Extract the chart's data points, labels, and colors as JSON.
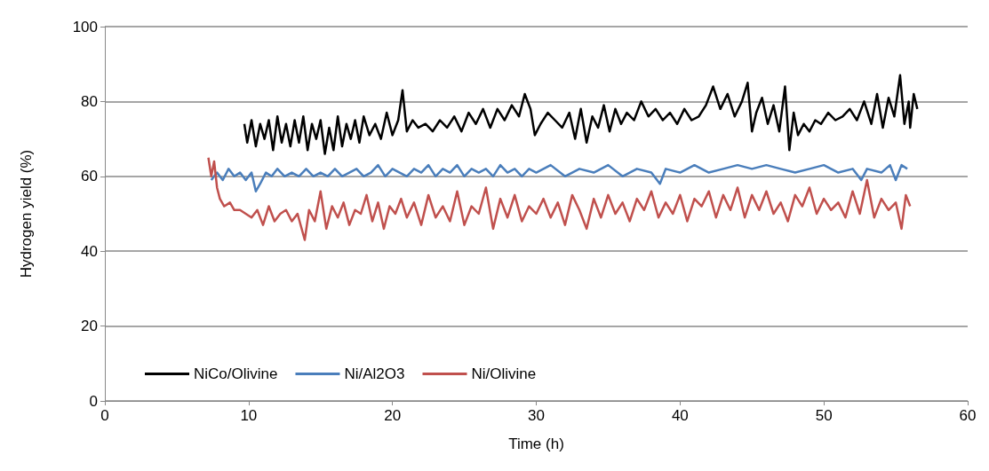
{
  "chart_data": {
    "type": "line",
    "xlabel": "Time (h)",
    "ylabel": "Hydrogen yield (%)",
    "xlim": [
      0,
      60
    ],
    "xticks": [
      0,
      10,
      20,
      30,
      40,
      50,
      60
    ],
    "ylim": [
      0,
      100
    ],
    "yticks": [
      0,
      20,
      40,
      60,
      80,
      100
    ],
    "grid": "y",
    "legend": "bottom left",
    "marker": "none",
    "line_style": "solid",
    "series": [
      {
        "name": "NiCo/Olivine",
        "color": "#000000",
        "x": [
          9.7,
          9.9,
          10.2,
          10.5,
          10.8,
          11.1,
          11.4,
          11.7,
          12.0,
          12.3,
          12.6,
          12.9,
          13.2,
          13.5,
          13.8,
          14.1,
          14.4,
          14.7,
          15.0,
          15.3,
          15.6,
          15.9,
          16.2,
          16.5,
          16.8,
          17.1,
          17.4,
          17.7,
          18.0,
          18.4,
          18.8,
          19.2,
          19.6,
          20.0,
          20.4,
          20.7,
          21.0,
          21.4,
          21.8,
          22.3,
          22.8,
          23.3,
          23.8,
          24.3,
          24.8,
          25.3,
          25.8,
          26.3,
          26.8,
          27.3,
          27.8,
          28.3,
          28.8,
          29.2,
          29.6,
          29.9,
          30.3,
          30.8,
          31.3,
          31.8,
          32.3,
          32.7,
          33.1,
          33.5,
          33.9,
          34.3,
          34.7,
          35.1,
          35.5,
          35.9,
          36.3,
          36.8,
          37.3,
          37.8,
          38.3,
          38.8,
          39.3,
          39.8,
          40.3,
          40.8,
          41.3,
          41.8,
          42.3,
          42.8,
          43.3,
          43.8,
          44.3,
          44.7,
          45.0,
          45.3,
          45.7,
          46.1,
          46.5,
          46.9,
          47.3,
          47.6,
          47.9,
          48.2,
          48.6,
          49.0,
          49.4,
          49.8,
          50.3,
          50.8,
          51.3,
          51.8,
          52.3,
          52.8,
          53.3,
          53.7,
          54.1,
          54.5,
          54.9,
          55.3,
          55.6,
          55.9,
          56.0,
          56.25,
          56.5
        ],
        "values": [
          74,
          69,
          75,
          68,
          74,
          70,
          75,
          67,
          76,
          69,
          74,
          68,
          75,
          69,
          76,
          67,
          74,
          70,
          75,
          66,
          73,
          67,
          76,
          68,
          74,
          70,
          75,
          69,
          76,
          71,
          74,
          70,
          77,
          71,
          75,
          83,
          72,
          75,
          73,
          74,
          72,
          75,
          73,
          76,
          72,
          77,
          74,
          78,
          73,
          78,
          75,
          79,
          76,
          82,
          78,
          71,
          74,
          77,
          75,
          73,
          77,
          70,
          78,
          69,
          76,
          73,
          79,
          72,
          78,
          74,
          77,
          75,
          80,
          76,
          78,
          75,
          77,
          74,
          78,
          75,
          76,
          79,
          84,
          78,
          82,
          76,
          80,
          85,
          72,
          77,
          81,
          74,
          79,
          72,
          84,
          67,
          77,
          71,
          74,
          72,
          75,
          74,
          77,
          75,
          76,
          78,
          75,
          80,
          74,
          82,
          73,
          81,
          76,
          87,
          74,
          80,
          73,
          82,
          78
        ]
      },
      {
        "name": "Ni/Al2O3",
        "color": "#4a7ebb",
        "x": [
          7.4,
          7.8,
          8.2,
          8.6,
          9.0,
          9.4,
          9.8,
          10.2,
          10.5,
          10.8,
          11.2,
          11.6,
          12.0,
          12.5,
          13.0,
          13.5,
          14.0,
          14.5,
          15.0,
          15.5,
          16.0,
          16.5,
          17.0,
          17.5,
          18.0,
          18.5,
          19.0,
          19.5,
          20.0,
          20.5,
          21.0,
          21.5,
          22.0,
          22.5,
          23.0,
          23.5,
          24.0,
          24.5,
          25.0,
          25.5,
          26.0,
          26.5,
          27.0,
          27.5,
          28.0,
          28.5,
          29.0,
          29.5,
          30.0,
          31.0,
          32.0,
          33.0,
          34.0,
          35.0,
          36.0,
          37.0,
          38.0,
          38.6,
          39.0,
          40.0,
          41.0,
          42.0,
          43.0,
          44.0,
          45.0,
          46.0,
          47.0,
          48.0,
          49.0,
          50.0,
          51.0,
          52.0,
          52.6,
          53.0,
          54.0,
          54.6,
          55.0,
          55.4,
          55.8
        ],
        "values": [
          59,
          61,
          59,
          62,
          60,
          61,
          59,
          61,
          56,
          58,
          61,
          60,
          62,
          60,
          61,
          60,
          62,
          60,
          61,
          60,
          62,
          60,
          61,
          62,
          60,
          61,
          63,
          60,
          62,
          61,
          60,
          62,
          61,
          63,
          60,
          62,
          61,
          63,
          60,
          62,
          61,
          62,
          60,
          63,
          61,
          62,
          60,
          62,
          61,
          63,
          60,
          62,
          61,
          63,
          60,
          62,
          61,
          58,
          62,
          61,
          63,
          61,
          62,
          63,
          62,
          63,
          62,
          61,
          62,
          63,
          61,
          62,
          59,
          62,
          61,
          63,
          59,
          63,
          62
        ]
      },
      {
        "name": "Ni/Olivine",
        "color": "#c0504d",
        "x": [
          7.2,
          7.4,
          7.6,
          7.8,
          8.0,
          8.3,
          8.7,
          9.0,
          9.4,
          9.8,
          10.2,
          10.6,
          11.0,
          11.4,
          11.8,
          12.2,
          12.6,
          13.0,
          13.4,
          13.9,
          14.2,
          14.6,
          15.0,
          15.4,
          15.8,
          16.2,
          16.6,
          17.0,
          17.4,
          17.8,
          18.2,
          18.6,
          19.0,
          19.4,
          19.8,
          20.2,
          20.6,
          21.0,
          21.5,
          22.0,
          22.5,
          23.0,
          23.5,
          24.0,
          24.5,
          25.0,
          25.5,
          26.0,
          26.5,
          27.0,
          27.5,
          28.0,
          28.5,
          29.0,
          29.5,
          30.0,
          30.5,
          31.0,
          31.5,
          32.0,
          32.5,
          33.0,
          33.5,
          34.0,
          34.5,
          35.0,
          35.5,
          36.0,
          36.5,
          37.0,
          37.5,
          38.0,
          38.5,
          39.0,
          39.5,
          40.0,
          40.5,
          41.0,
          41.5,
          42.0,
          42.5,
          43.0,
          43.5,
          44.0,
          44.5,
          45.0,
          45.5,
          46.0,
          46.5,
          47.0,
          47.5,
          48.0,
          48.5,
          49.0,
          49.5,
          50.0,
          50.5,
          51.0,
          51.5,
          52.0,
          52.5,
          53.0,
          53.5,
          54.0,
          54.5,
          55.0,
          55.4,
          55.7,
          56.0
        ],
        "values": [
          65,
          60,
          64,
          57,
          54,
          52,
          53,
          51,
          51,
          50,
          49,
          51,
          47,
          52,
          48,
          50,
          51,
          48,
          50,
          43,
          51,
          48,
          56,
          46,
          52,
          49,
          53,
          47,
          51,
          50,
          55,
          48,
          53,
          46,
          52,
          50,
          54,
          49,
          53,
          47,
          55,
          49,
          52,
          48,
          56,
          47,
          52,
          50,
          57,
          46,
          54,
          49,
          55,
          48,
          52,
          50,
          54,
          49,
          53,
          47,
          55,
          51,
          46,
          54,
          49,
          55,
          50,
          53,
          48,
          54,
          51,
          56,
          49,
          53,
          50,
          55,
          48,
          54,
          52,
          56,
          49,
          55,
          51,
          57,
          49,
          55,
          51,
          56,
          50,
          53,
          48,
          55,
          52,
          57,
          50,
          54,
          51,
          53,
          49,
          56,
          50,
          59,
          49,
          54,
          51,
          53,
          46,
          55,
          52
        ]
      }
    ]
  }
}
